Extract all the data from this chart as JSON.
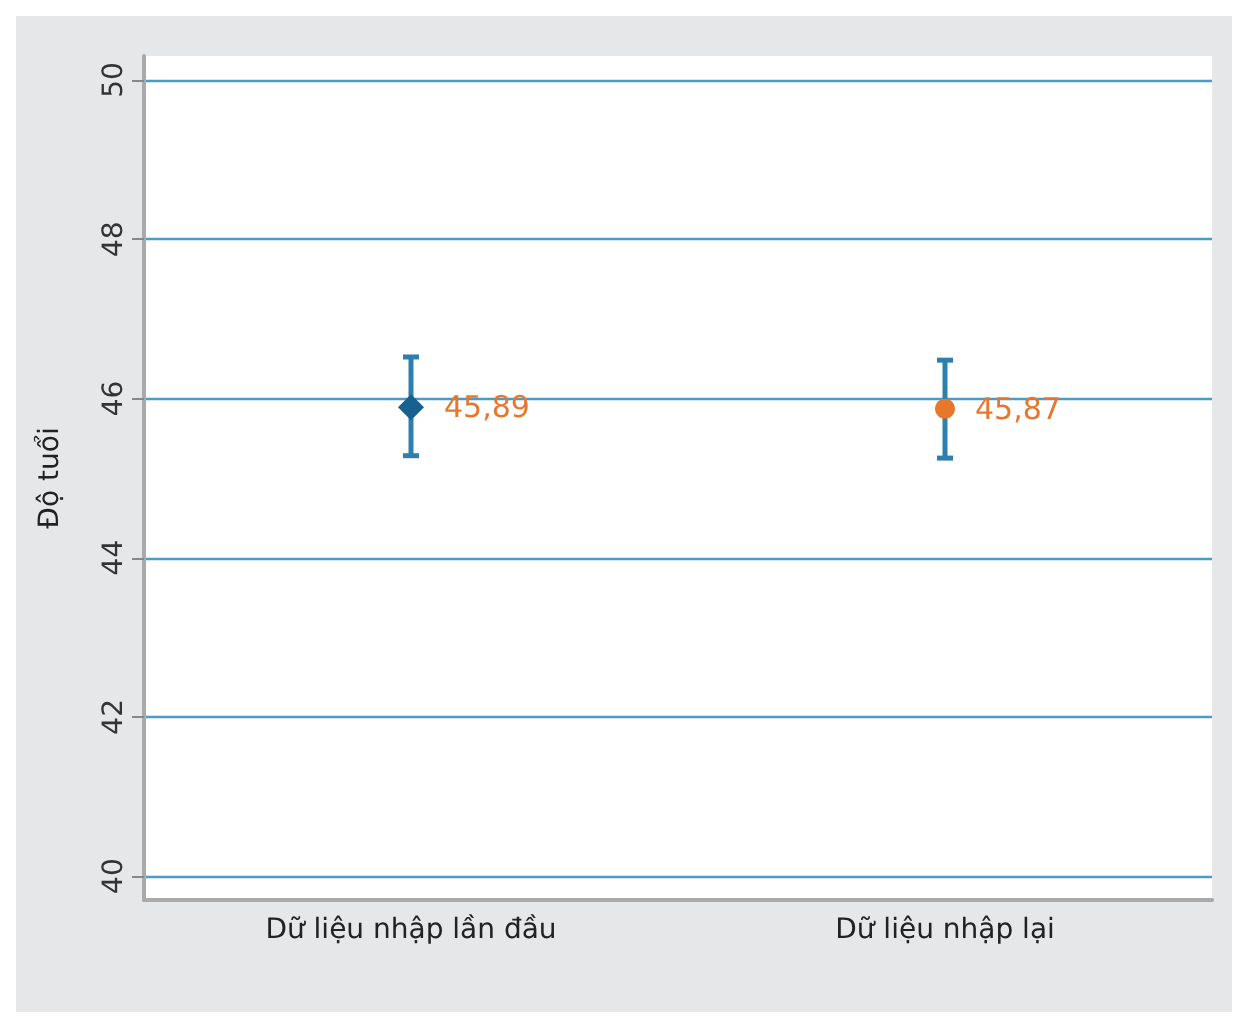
{
  "chart_data": {
    "type": "scatter",
    "ylabel": "Độ tuổi",
    "categories": [
      "Dữ liệu nhập lần đầu",
      "Dữ liệu nhập lại"
    ],
    "series": [
      {
        "color": "#17608f",
        "marker": "diamond",
        "values": [
          45.89,
          null
        ],
        "errors": [
          [
            45.28,
            46.52
          ],
          null
        ],
        "value_labels": [
          "45,89",
          null
        ]
      },
      {
        "color": "#e8772e",
        "marker": "circle",
        "values": [
          null,
          45.87
        ],
        "errors": [
          null,
          [
            45.25,
            46.48
          ]
        ],
        "value_labels": [
          null,
          "45,87"
        ]
      }
    ],
    "ylim": [
      39.7,
      50.3
    ],
    "yticks": [
      40,
      42,
      44,
      46,
      48,
      50
    ],
    "grid": "y"
  }
}
